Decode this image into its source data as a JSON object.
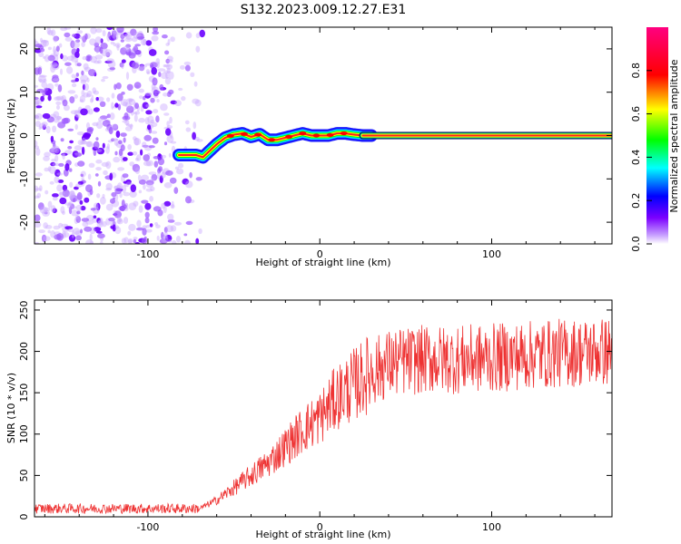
{
  "title": "S132.2023.009.12.27.E31",
  "chart_data": [
    {
      "type": "heatmap",
      "xlabel": "Height of straight line (km)",
      "ylabel": "Frequency (Hz)",
      "xlim": [
        -166,
        170
      ],
      "ylim": [
        -25,
        25
      ],
      "xticks": [
        -100,
        0,
        100
      ],
      "xtick_labels": [
        "-100",
        "0",
        "100"
      ],
      "yticks": [
        -20,
        -10,
        0,
        10,
        20
      ],
      "ytick_labels": [
        "-20",
        "-10",
        "0",
        "10",
        "20"
      ],
      "grid": false,
      "noise_region_x": [
        -166,
        -68
      ],
      "ridge": {
        "x": [
          -82,
          -78,
          -72,
          -68,
          -64,
          -60,
          -55,
          -50,
          -45,
          -40,
          -35,
          -30,
          -25,
          -20,
          -15,
          -10,
          -5,
          0,
          5,
          10,
          15,
          20,
          25,
          30,
          100,
          170
        ],
        "freq": [
          -4.5,
          -4.5,
          -4.5,
          -5,
          -3.5,
          -2,
          -0.5,
          0.2,
          0.5,
          -0.3,
          0.3,
          -1,
          -1,
          -0.5,
          0,
          0.5,
          0,
          0,
          0,
          0.5,
          0.5,
          0.2,
          0,
          0,
          0,
          0
        ]
      },
      "colorbar": {
        "label": "Normalized spectral amplitude",
        "range": [
          0,
          1
        ],
        "ticks": [
          0.0,
          0.2,
          0.4,
          0.6,
          0.8
        ],
        "tick_labels": [
          "0.0",
          "0.2",
          "0.4",
          "0.6",
          "0.8"
        ],
        "colors": [
          "#ffffff",
          "#7b00ff",
          "#0000ff",
          "#00ffff",
          "#00ff00",
          "#ffff00",
          "#ff0000",
          "#ff0080"
        ]
      }
    },
    {
      "type": "line",
      "xlabel": "Height of straight line (km)",
      "ylabel": "SNR (10 * v/v)",
      "xlim": [
        -166,
        170
      ],
      "ylim": [
        0,
        262
      ],
      "xticks": [
        -100,
        0,
        100
      ],
      "xtick_labels": [
        "-100",
        "0",
        "100"
      ],
      "yticks": [
        0,
        50,
        100,
        150,
        200,
        250
      ],
      "ytick_labels": [
        "0",
        "50",
        "100",
        "150",
        "200",
        "250"
      ],
      "grid": false,
      "series": [
        {
          "color": "#ee3333",
          "trend_x": [
            -166,
            -70,
            -60,
            -50,
            -40,
            -30,
            -20,
            -10,
            0,
            10,
            20,
            30,
            40,
            50,
            60,
            80,
            100,
            120,
            140,
            170
          ],
          "trend_y": [
            10,
            10,
            20,
            35,
            50,
            65,
            85,
            105,
            120,
            145,
            160,
            175,
            185,
            188,
            190,
            190,
            192,
            195,
            198,
            200
          ]
        }
      ]
    }
  ]
}
